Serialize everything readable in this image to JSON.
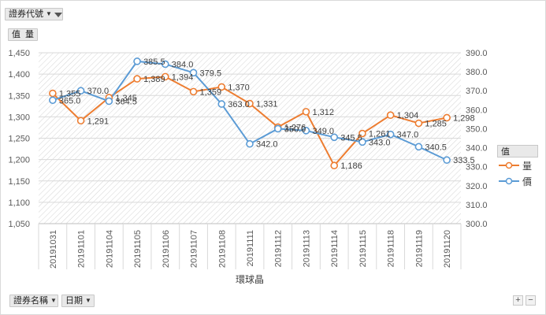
{
  "fields": {
    "filter_field": "證券代號",
    "value_field": "值",
    "value_field_sub": "量",
    "axis_field_1": "證券名稱",
    "axis_field_2": "日期"
  },
  "legend": {
    "title": "值"
  },
  "zoom": {
    "plus": "+",
    "minus": "−"
  },
  "chart_data": {
    "type": "line",
    "title": "",
    "xlabel": "環球晶",
    "categories": [
      "20191031",
      "20191101",
      "20191104",
      "20191105",
      "20191106",
      "20191107",
      "20191108",
      "20191111",
      "20191112",
      "20191113",
      "20191114",
      "20191115",
      "20191118",
      "20191119",
      "20191120"
    ],
    "series": [
      {
        "name": "量",
        "axis": "left",
        "color": "#ED7D31",
        "values": [
          1355,
          1291,
          1345,
          1389,
          1394,
          1359,
          1370,
          1331,
          1276,
          1312,
          1186,
          1261,
          1304,
          1285,
          1298
        ],
        "labels": [
          "1,355",
          "1,291",
          "1,345",
          "1,389",
          "1,394",
          "1,359",
          "1,370",
          "1,331",
          "1,276",
          "1,312",
          "1,186",
          "1,261",
          "1,304",
          "1,285",
          "1,298"
        ]
      },
      {
        "name": "價",
        "axis": "right",
        "color": "#5B9BD5",
        "values": [
          365.0,
          370.0,
          364.5,
          385.5,
          384.0,
          379.5,
          363.0,
          342.0,
          350.0,
          349.0,
          345.5,
          343.0,
          347.0,
          340.5,
          333.5
        ],
        "labels": [
          "365.0",
          "370.0",
          "364.5",
          "385.5",
          "384.0",
          "379.5",
          "363.0",
          "342.0",
          "350.0",
          "349.0",
          "345.5",
          "343.0",
          "347.0",
          "340.5",
          "333.5"
        ]
      }
    ],
    "y_left": {
      "min": 1050,
      "max": 1450,
      "step": 50,
      "tick_labels": [
        "1,050",
        "1,100",
        "1,150",
        "1,200",
        "1,250",
        "1,300",
        "1,350",
        "1,400",
        "1,450"
      ]
    },
    "y_right": {
      "min": 300,
      "max": 390,
      "step": 10,
      "tick_labels": [
        "300.0",
        "310.0",
        "320.0",
        "330.0",
        "340.0",
        "350.0",
        "360.0",
        "370.0",
        "380.0",
        "390.0"
      ]
    },
    "legend_position": "right"
  }
}
